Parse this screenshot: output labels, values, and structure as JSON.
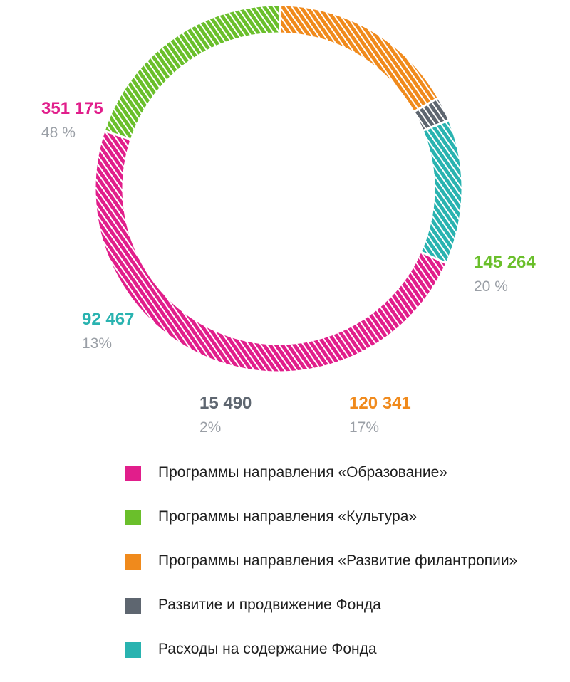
{
  "chart_data": {
    "type": "pie",
    "title": "",
    "donut": true,
    "hatched": true,
    "slices": [
      {
        "label": "Программы направления «Образование»",
        "value_text": "351 175",
        "value": 351175,
        "percent": "48 %",
        "percent_value": 48,
        "color": "#e11e8b"
      },
      {
        "label": "Программы направления «Культура»",
        "value_text": "145 264",
        "value": 145264,
        "percent": "20 %",
        "percent_value": 20,
        "color": "#6abf2b"
      },
      {
        "label": "Программы направления «Развитие филантропии»",
        "value_text": "120 341",
        "value": 120341,
        "percent": "17%",
        "percent_value": 17,
        "color": "#f08a1c"
      },
      {
        "label": "Развитие и продвижение Фонда",
        "value_text": "15 490",
        "value": 15490,
        "percent": "2%",
        "percent_value": 2,
        "color": "#5e6670"
      },
      {
        "label": "Расходы на содержание Фонда",
        "value_text": "92 467",
        "value": 92467,
        "percent": "13%",
        "percent_value": 13,
        "color": "#29b3b0"
      }
    ]
  }
}
